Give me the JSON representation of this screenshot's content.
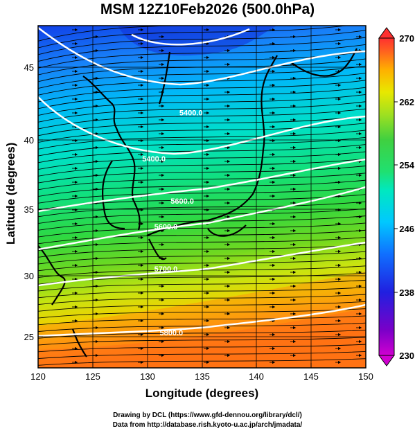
{
  "title": "MSM 12Z10Feb2026 (500.0hPa)",
  "xlabel": "Longitude (degrees)",
  "ylabel": "Latitude  (degrees)",
  "credits": {
    "line1": "Drawing by DCL (https://www.gfd-dennou.org/library/dcl/)",
    "line2": "Data from http://database.rish.kyoto-u.ac.jp/arch/jmadata/"
  },
  "chart_data": {
    "type": "heatmap",
    "description_fields": "temperature shading (K) with streamlines and geopotential height contours (m)",
    "x_range": [
      120,
      150
    ],
    "y_range": [
      22.4,
      47.6
    ],
    "x_ticks": [
      "120",
      "125",
      "130",
      "135",
      "140",
      "145",
      "150"
    ],
    "y_ticks": [
      "25",
      "30",
      "35",
      "40",
      "45"
    ],
    "colorbar": {
      "range": [
        230,
        270
      ],
      "tick_labels": [
        "270",
        "262",
        "254",
        "246",
        "238",
        "230"
      ],
      "colors": [
        "#d000d0",
        "#7a00c8",
        "#2020e0",
        "#1070ff",
        "#00c8ff",
        "#00e8c0",
        "#20e070",
        "#40d040",
        "#a0e020",
        "#e8e800",
        "#ffb000",
        "#ff6020",
        "#ff3030"
      ]
    },
    "contours": [
      {
        "label": "5400.0",
        "lon": 134.0,
        "lat": 41.0
      },
      {
        "label": "5400.0",
        "lon": 130.6,
        "lat": 37.6
      },
      {
        "label": "5600.0",
        "lon": 133.2,
        "lat": 34.5
      },
      {
        "label": "5600.0",
        "lon": 131.7,
        "lat": 32.6
      },
      {
        "label": "5700.0",
        "lon": 131.7,
        "lat": 29.5
      },
      {
        "label": "5800.0",
        "lon": 132.2,
        "lat": 24.8
      }
    ]
  }
}
